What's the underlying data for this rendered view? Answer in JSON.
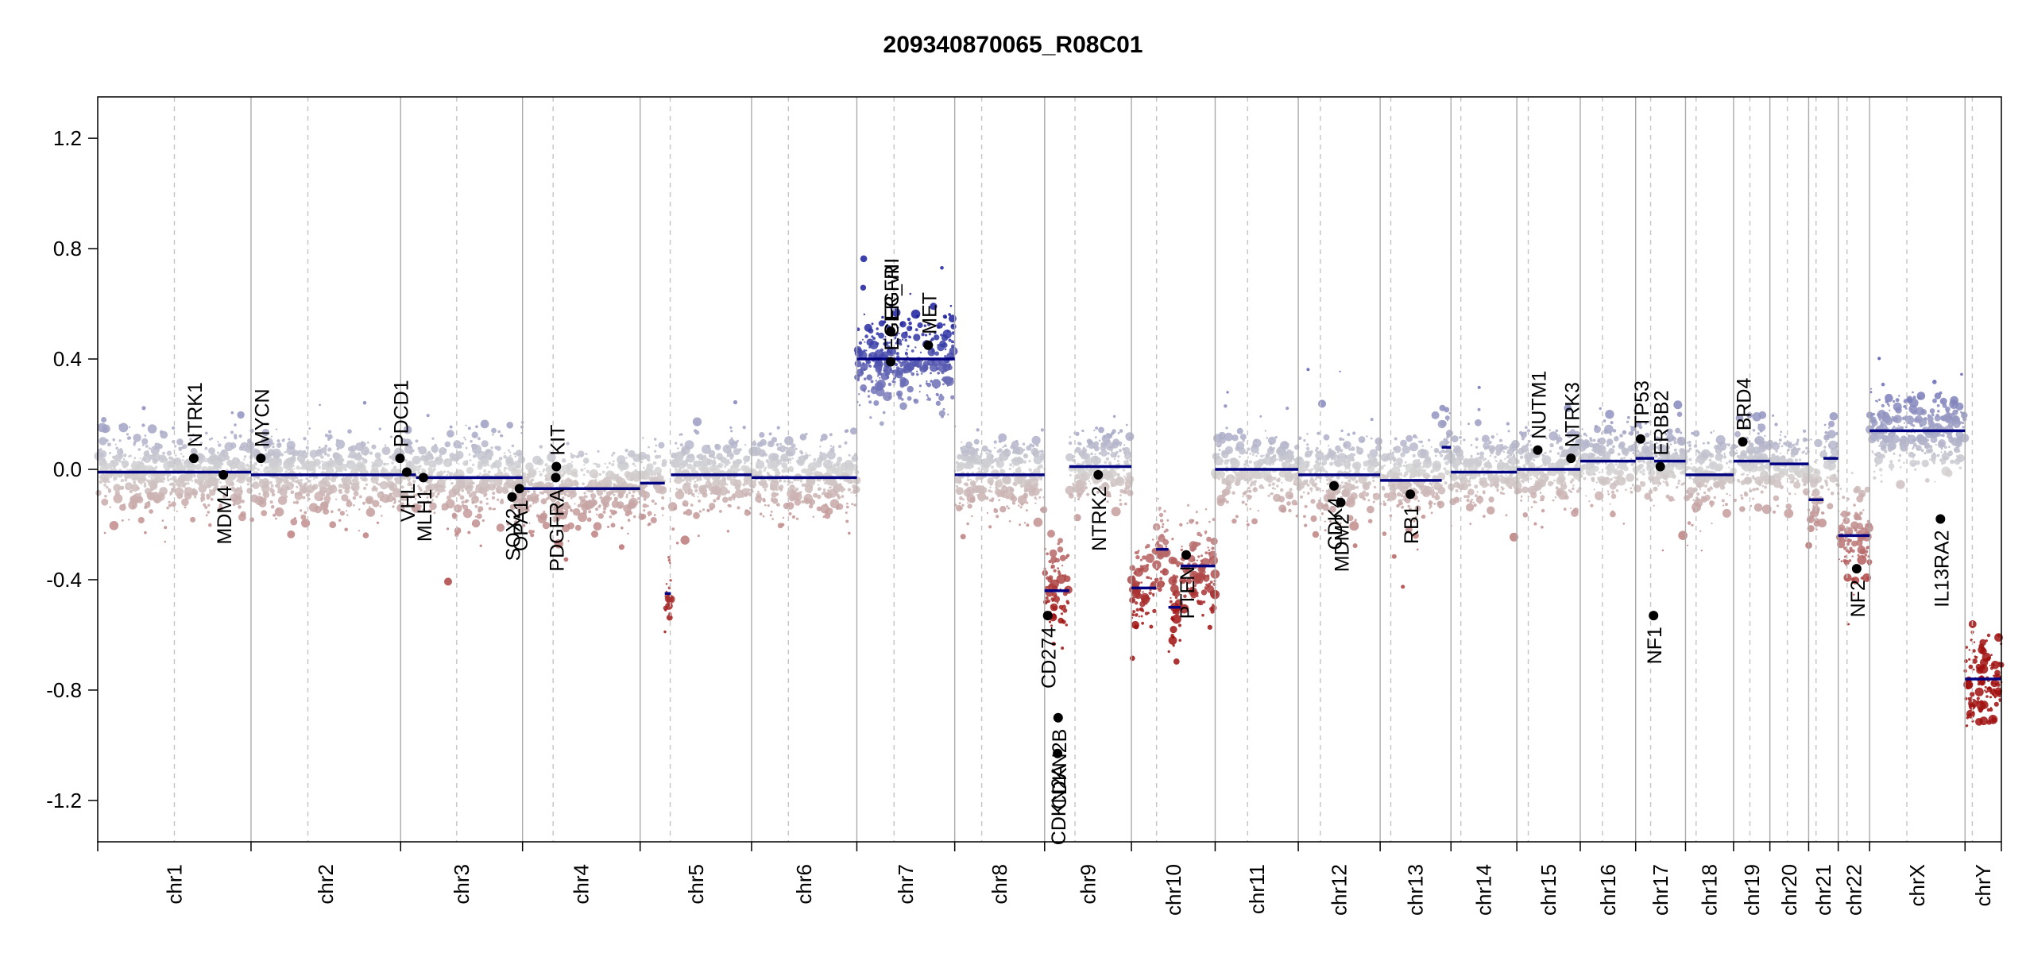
{
  "chart_data": {
    "type": "scatter",
    "title": "209340870065_R08C01",
    "xlabel": "",
    "ylabel": "",
    "ylim": [
      -1.35,
      1.35
    ],
    "yticks": [
      -1.2,
      -0.8,
      -0.4,
      0.0,
      0.4,
      0.8,
      1.2
    ],
    "ytick_labels": [
      "-1.2",
      "-0.8",
      "-0.4",
      "0.0",
      "0.4",
      "0.8",
      "1.2"
    ],
    "grid": "vertical chromosome separators (solid) and centromeres (dashed)",
    "legend": "none",
    "colors": {
      "gain": "#1a1f9e",
      "loss": "#a01010",
      "neutral": "#d4d4d4",
      "segment": "#000080",
      "gene_marker": "#000000"
    },
    "chromosomes": [
      {
        "name": "chr1",
        "length": 249,
        "centromere": 0.5
      },
      {
        "name": "chr2",
        "length": 243,
        "centromere": 0.38
      },
      {
        "name": "chr3",
        "length": 198,
        "centromere": 0.46
      },
      {
        "name": "chr4",
        "length": 191,
        "centromere": 0.26
      },
      {
        "name": "chr5",
        "length": 181,
        "centromere": 0.27
      },
      {
        "name": "chr6",
        "length": 171,
        "centromere": 0.35
      },
      {
        "name": "chr7",
        "length": 159,
        "centromere": 0.38
      },
      {
        "name": "chr8",
        "length": 146,
        "centromere": 0.3
      },
      {
        "name": "chr9",
        "length": 141,
        "centromere": 0.35
      },
      {
        "name": "chr10",
        "length": 136,
        "centromere": 0.3
      },
      {
        "name": "chr11",
        "length": 135,
        "centromere": 0.39
      },
      {
        "name": "chr12",
        "length": 133,
        "centromere": 0.27
      },
      {
        "name": "chr13",
        "length": 115,
        "centromere": 0.15
      },
      {
        "name": "chr14",
        "length": 107,
        "centromere": 0.15
      },
      {
        "name": "chr15",
        "length": 103,
        "centromere": 0.18
      },
      {
        "name": "chr16",
        "length": 90,
        "centromere": 0.4
      },
      {
        "name": "chr17",
        "length": 81,
        "centromere": 0.3
      },
      {
        "name": "chr18",
        "length": 78,
        "centromere": 0.22
      },
      {
        "name": "chr19",
        "length": 59,
        "centromere": 0.45
      },
      {
        "name": "chr20",
        "length": 63,
        "centromere": 0.45
      },
      {
        "name": "chr21",
        "length": 48,
        "centromere": 0.25
      },
      {
        "name": "chr22",
        "length": 51,
        "centromere": 0.28
      },
      {
        "name": "chrX",
        "length": 155,
        "centromere": 0.39
      },
      {
        "name": "chrY",
        "length": 59,
        "centromere": 0.2
      }
    ],
    "segments": [
      {
        "chrom": "chr1",
        "start": 0,
        "end": 249,
        "value": -0.01
      },
      {
        "chrom": "chr2",
        "start": 0,
        "end": 243,
        "value": -0.02
      },
      {
        "chrom": "chr3",
        "start": 0,
        "end": 25,
        "value": -0.02
      },
      {
        "chrom": "chr3",
        "start": 25,
        "end": 198,
        "value": -0.03
      },
      {
        "chrom": "chr4",
        "start": 0,
        "end": 191,
        "value": -0.07
      },
      {
        "chrom": "chr5",
        "start": 0,
        "end": 40,
        "value": -0.05
      },
      {
        "chrom": "chr5",
        "start": 40,
        "end": 50,
        "value": -0.45
      },
      {
        "chrom": "chr5",
        "start": 50,
        "end": 181,
        "value": -0.02
      },
      {
        "chrom": "chr6",
        "start": 0,
        "end": 171,
        "value": -0.03
      },
      {
        "chrom": "chr7",
        "start": 0,
        "end": 159,
        "value": 0.4
      },
      {
        "chrom": "chr8",
        "start": 0,
        "end": 146,
        "value": -0.02
      },
      {
        "chrom": "chr9",
        "start": 0,
        "end": 40,
        "value": -0.44
      },
      {
        "chrom": "chr9",
        "start": 40,
        "end": 141,
        "value": 0.01
      },
      {
        "chrom": "chr10",
        "start": 0,
        "end": 40,
        "value": -0.43
      },
      {
        "chrom": "chr10",
        "start": 40,
        "end": 60,
        "value": -0.29
      },
      {
        "chrom": "chr10",
        "start": 60,
        "end": 80,
        "value": -0.5
      },
      {
        "chrom": "chr10",
        "start": 80,
        "end": 136,
        "value": -0.35
      },
      {
        "chrom": "chr11",
        "start": 0,
        "end": 135,
        "value": 0.0
      },
      {
        "chrom": "chr12",
        "start": 0,
        "end": 133,
        "value": -0.02
      },
      {
        "chrom": "chr13",
        "start": 0,
        "end": 100,
        "value": -0.04
      },
      {
        "chrom": "chr13",
        "start": 100,
        "end": 115,
        "value": 0.08
      },
      {
        "chrom": "chr14",
        "start": 0,
        "end": 107,
        "value": -0.01
      },
      {
        "chrom": "chr15",
        "start": 0,
        "end": 103,
        "value": 0.0
      },
      {
        "chrom": "chr16",
        "start": 0,
        "end": 90,
        "value": 0.03
      },
      {
        "chrom": "chr17",
        "start": 0,
        "end": 30,
        "value": 0.04
      },
      {
        "chrom": "chr17",
        "start": 30,
        "end": 81,
        "value": 0.03
      },
      {
        "chrom": "chr18",
        "start": 0,
        "end": 78,
        "value": -0.02
      },
      {
        "chrom": "chr19",
        "start": 0,
        "end": 59,
        "value": 0.03
      },
      {
        "chrom": "chr20",
        "start": 0,
        "end": 63,
        "value": 0.02
      },
      {
        "chrom": "chr21",
        "start": 0,
        "end": 24,
        "value": -0.11
      },
      {
        "chrom": "chr21",
        "start": 24,
        "end": 48,
        "value": 0.04
      },
      {
        "chrom": "chr22",
        "start": 0,
        "end": 51,
        "value": -0.24
      },
      {
        "chrom": "chrX",
        "start": 0,
        "end": 155,
        "value": 0.14
      },
      {
        "chrom": "chrY",
        "start": 0,
        "end": 59,
        "value": -0.76
      }
    ],
    "genes": [
      {
        "name": "NTRK1",
        "chrom": "chr1",
        "pos": 156,
        "value": 0.04,
        "label_dir": "up"
      },
      {
        "name": "MDM4",
        "chrom": "chr1",
        "pos": 204,
        "value": -0.02,
        "label_dir": "down"
      },
      {
        "name": "MYCN",
        "chrom": "chr2",
        "pos": 16,
        "value": 0.04,
        "label_dir": "up"
      },
      {
        "name": "PDCD1",
        "chrom": "chr2",
        "pos": 242,
        "value": 0.04,
        "label_dir": "up"
      },
      {
        "name": "VHL",
        "chrom": "chr3",
        "pos": 10,
        "value": -0.01,
        "label_dir": "down"
      },
      {
        "name": "MLH1",
        "chrom": "chr3",
        "pos": 37,
        "value": -0.03,
        "label_dir": "down"
      },
      {
        "name": "SOX2",
        "chrom": "chr3",
        "pos": 181,
        "value": -0.1,
        "label_dir": "down"
      },
      {
        "name": "OPA1",
        "chrom": "chr3",
        "pos": 193,
        "value": -0.07,
        "label_dir": "down"
      },
      {
        "name": "KIT",
        "chrom": "chr4",
        "pos": 55,
        "value": 0.01,
        "label_dir": "up"
      },
      {
        "name": "PDGFRA",
        "chrom": "chr4",
        "pos": 54,
        "value": -0.03,
        "label_dir": "down"
      },
      {
        "name": "EGFR",
        "chrom": "chr7",
        "pos": 55,
        "value": 0.5,
        "label_dir": "up"
      },
      {
        "name": "EGFR_vIII",
        "chrom": "chr7",
        "pos": 55,
        "value": 0.39,
        "label_dir": "up"
      },
      {
        "name": "MET",
        "chrom": "chr7",
        "pos": 116,
        "value": 0.45,
        "label_dir": "up"
      },
      {
        "name": "CD274",
        "chrom": "chr9",
        "pos": 5,
        "value": -0.53,
        "label_dir": "down"
      },
      {
        "name": "CDKN2A",
        "chrom": "chr9",
        "pos": 21,
        "value": -1.03,
        "label_dir": "down"
      },
      {
        "name": "CDKN2B",
        "chrom": "chr9",
        "pos": 22,
        "value": -0.9,
        "label_dir": "down"
      },
      {
        "name": "NTRK2",
        "chrom": "chr9",
        "pos": 87,
        "value": -0.02,
        "label_dir": "down"
      },
      {
        "name": "PTEN",
        "chrom": "chr10",
        "pos": 89,
        "value": -0.31,
        "label_dir": "down"
      },
      {
        "name": "CDK4",
        "chrom": "chr12",
        "pos": 58,
        "value": -0.06,
        "label_dir": "down"
      },
      {
        "name": "MDM2",
        "chrom": "chr12",
        "pos": 69,
        "value": -0.12,
        "label_dir": "down"
      },
      {
        "name": "RB1",
        "chrom": "chr13",
        "pos": 49,
        "value": -0.09,
        "label_dir": "down"
      },
      {
        "name": "NUTM1",
        "chrom": "chr15",
        "pos": 34,
        "value": 0.07,
        "label_dir": "up"
      },
      {
        "name": "NTRK3",
        "chrom": "chr15",
        "pos": 88,
        "value": 0.04,
        "label_dir": "up"
      },
      {
        "name": "TP53",
        "chrom": "chr17",
        "pos": 8,
        "value": 0.11,
        "label_dir": "up"
      },
      {
        "name": "NF1",
        "chrom": "chr17",
        "pos": 29,
        "value": -0.53,
        "label_dir": "down"
      },
      {
        "name": "ERBB2",
        "chrom": "chr17",
        "pos": 40,
        "value": 0.01,
        "label_dir": "up"
      },
      {
        "name": "BRD4",
        "chrom": "chr19",
        "pos": 15,
        "value": 0.1,
        "label_dir": "up"
      },
      {
        "name": "NF2",
        "chrom": "chr22",
        "pos": 30,
        "value": -0.36,
        "label_dir": "down"
      },
      {
        "name": "IL13RA2",
        "chrom": "chrX",
        "pos": 115,
        "value": -0.18,
        "label_dir": "down"
      }
    ]
  }
}
